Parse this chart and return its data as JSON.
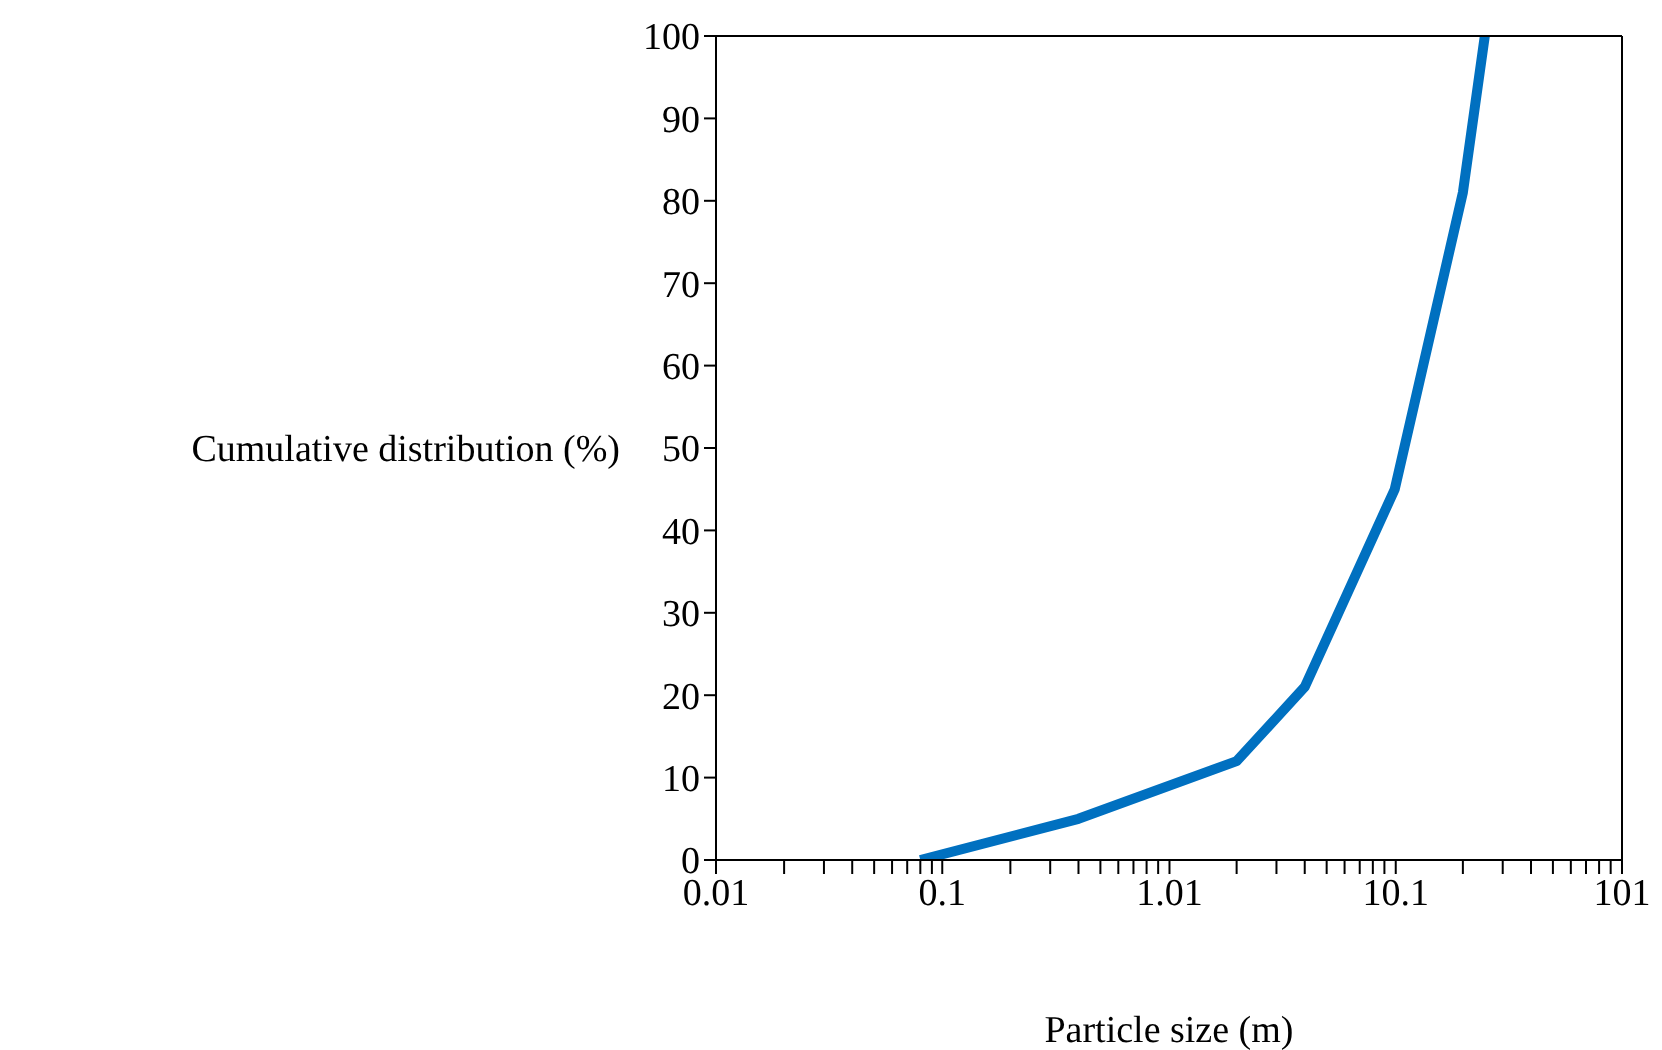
{
  "chart_data": {
    "type": "line",
    "xlabel": "Particle size (m)",
    "ylabel": "Cumulative distribution (%)",
    "log": "x",
    "x": [
      0.08,
      0.4,
      2,
      4,
      10,
      20,
      25
    ],
    "series": [
      {
        "color": "#0070c0",
        "values": [
          0,
          5,
          12,
          21,
          45,
          81,
          100
        ]
      }
    ],
    "xlim": [
      0.01,
      101
    ],
    "xticks": [
      0.01,
      {
        "value": 0.02,
        "label": null
      },
      {
        "value": 0.03,
        "label": null
      },
      {
        "value": 0.04,
        "label": null
      },
      {
        "value": 0.05,
        "label": null
      },
      {
        "value": 0.06,
        "label": null
      },
      {
        "value": 0.07,
        "label": null
      },
      {
        "value": 0.08,
        "label": null
      },
      {
        "value": 0.09,
        "label": null
      },
      0.1,
      {
        "value": 0.2,
        "label": null
      },
      {
        "value": 0.3,
        "label": null
      },
      {
        "value": 0.4,
        "label": null
      },
      {
        "value": 0.5,
        "label": null
      },
      {
        "value": 0.6,
        "label": null
      },
      {
        "value": 0.7,
        "label": null
      },
      {
        "value": 0.8,
        "label": null
      },
      {
        "value": 0.9,
        "label": null
      },
      1.01,
      {
        "value": 2,
        "label": null
      },
      {
        "value": 3,
        "label": null
      },
      {
        "value": 4,
        "label": null
      },
      {
        "value": 5,
        "label": null
      },
      {
        "value": 6,
        "label": null
      },
      {
        "value": 7,
        "label": null
      },
      {
        "value": 8,
        "label": null
      },
      {
        "value": 9,
        "label": null
      },
      10.1,
      {
        "value": 20,
        "label": null
      },
      {
        "value": 30,
        "label": null
      },
      {
        "value": 40,
        "label": null
      },
      {
        "value": 50,
        "label": null
      },
      {
        "value": 60,
        "label": null
      },
      {
        "value": 70,
        "label": null
      },
      {
        "value": 80,
        "label": null
      },
      {
        "value": 90,
        "label": null
      },
      101
    ],
    "ylim": [
      0,
      100
    ],
    "yticks": [
      0,
      10,
      20,
      30,
      40,
      50,
      60,
      70,
      80,
      90,
      100
    ],
    "grid": false,
    "legend": false,
    "marker": "none",
    "line_style": "solid"
  }
}
